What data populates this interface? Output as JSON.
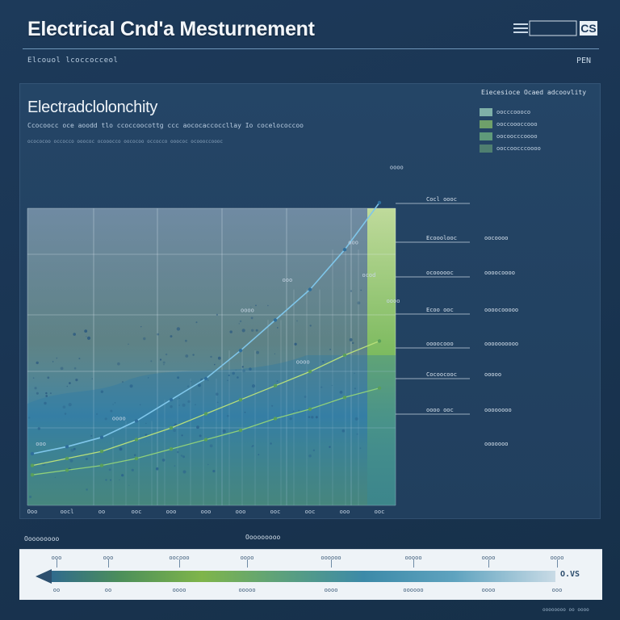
{
  "page_title": "Electrical Cnd'a Mesturnement",
  "logo_text": "CS",
  "header_sub": "Elcouol lcoccocceol",
  "header_tag": "PEN",
  "chart_data": {
    "type": "line",
    "title": "Electradclolonchity",
    "subtitle": "Ccocoocc oce aoodd tlo ccoccoocottg ccc aococaccoccllay Io cocelococcoo",
    "caption": "ocococoo occocco ooococ ocooocco oococoo occocco ooococ ocoooccoooc",
    "x_ticks": [
      "Ooo",
      "oocl",
      "oo",
      "ooc",
      "ooo",
      "ooo",
      "ooo",
      "ooc",
      "ooc",
      "ooo",
      "ooc"
    ],
    "x": [
      0,
      1,
      2,
      3,
      4,
      5,
      6,
      7,
      8,
      9,
      10
    ],
    "series": [
      {
        "values": [
          2.2,
          2.5,
          2.9,
          3.6,
          4.5,
          5.4,
          6.6,
          7.9,
          9.2,
          10.9,
          12.9
        ],
        "color": "#7fc6ea"
      },
      {
        "values": [
          1.7,
          2.0,
          2.3,
          2.8,
          3.3,
          3.9,
          4.5,
          5.1,
          5.7,
          6.4,
          7.0
        ],
        "color": "#b8e07a"
      },
      {
        "values": [
          1.3,
          1.5,
          1.7,
          2.0,
          2.4,
          2.8,
          3.2,
          3.7,
          4.1,
          4.6,
          5.0
        ],
        "color": "#8fd07a"
      }
    ],
    "point_labels": [
      {
        "text": "ooo",
        "x": 0.1,
        "y": 2.4
      },
      {
        "text": "oooo",
        "x": 2.3,
        "y": 3.5
      },
      {
        "text": "oooo",
        "x": 6.0,
        "y": 8.1
      },
      {
        "text": "ooo",
        "x": 7.2,
        "y": 9.4
      },
      {
        "text": "oooo",
        "x": 7.6,
        "y": 5.9
      },
      {
        "text": "ooo",
        "x": 9.1,
        "y": 11.0
      },
      {
        "text": "ocod",
        "x": 9.5,
        "y": 9.6
      },
      {
        "text": "oooo",
        "x": 10.2,
        "y": 8.5
      },
      {
        "text": "oooo",
        "x": 10.3,
        "y": 14.2
      }
    ],
    "ylim": [
      0,
      15
    ],
    "grid": true,
    "legend_position": "top-right"
  },
  "legend": {
    "title": "Eiecesioce Ocaed adcoovlity",
    "items": [
      {
        "label": "oocccoooco",
        "color": "#7fb0a8"
      },
      {
        "label": "ooccoooccooo",
        "color": "#6fa06a"
      },
      {
        "label": "oocoocccoooo",
        "color": "#5f9a7a"
      },
      {
        "label": "ooccoocccoooo",
        "color": "#4f7f70"
      }
    ]
  },
  "right_labels": [
    {
      "left": "Cocl oooc",
      "right": ""
    },
    {
      "left": "Ecooolooc",
      "right": "oocoooo"
    },
    {
      "left": "ocoooooc",
      "right": "oooocoooo"
    },
    {
      "left": "Ecoo ooc",
      "right": "oooocooooo"
    },
    {
      "left": "oooocooo",
      "right": "oooooooooo"
    },
    {
      "left": "Cocoocooc",
      "right": "ooooo"
    },
    {
      "left": "oooo ooc",
      "right": "oooooooo"
    },
    {
      "left": "",
      "right": "ooooooo"
    }
  ],
  "scale": {
    "title": "Ooooooooo",
    "center_title": "Ooooooooo",
    "unit": "O.VS",
    "top_ticks": [
      "ooo",
      "ooo",
      "oocooo",
      "oooo",
      "oooooo",
      "ooooo",
      "oooo",
      "oooo"
    ],
    "bottom_ticks": [
      "oo",
      "oo",
      "oooo",
      "ooooo",
      "oooo",
      "oooooo",
      "oooo",
      "ooo"
    ]
  },
  "footer_note": "oooooooo oo oooo"
}
